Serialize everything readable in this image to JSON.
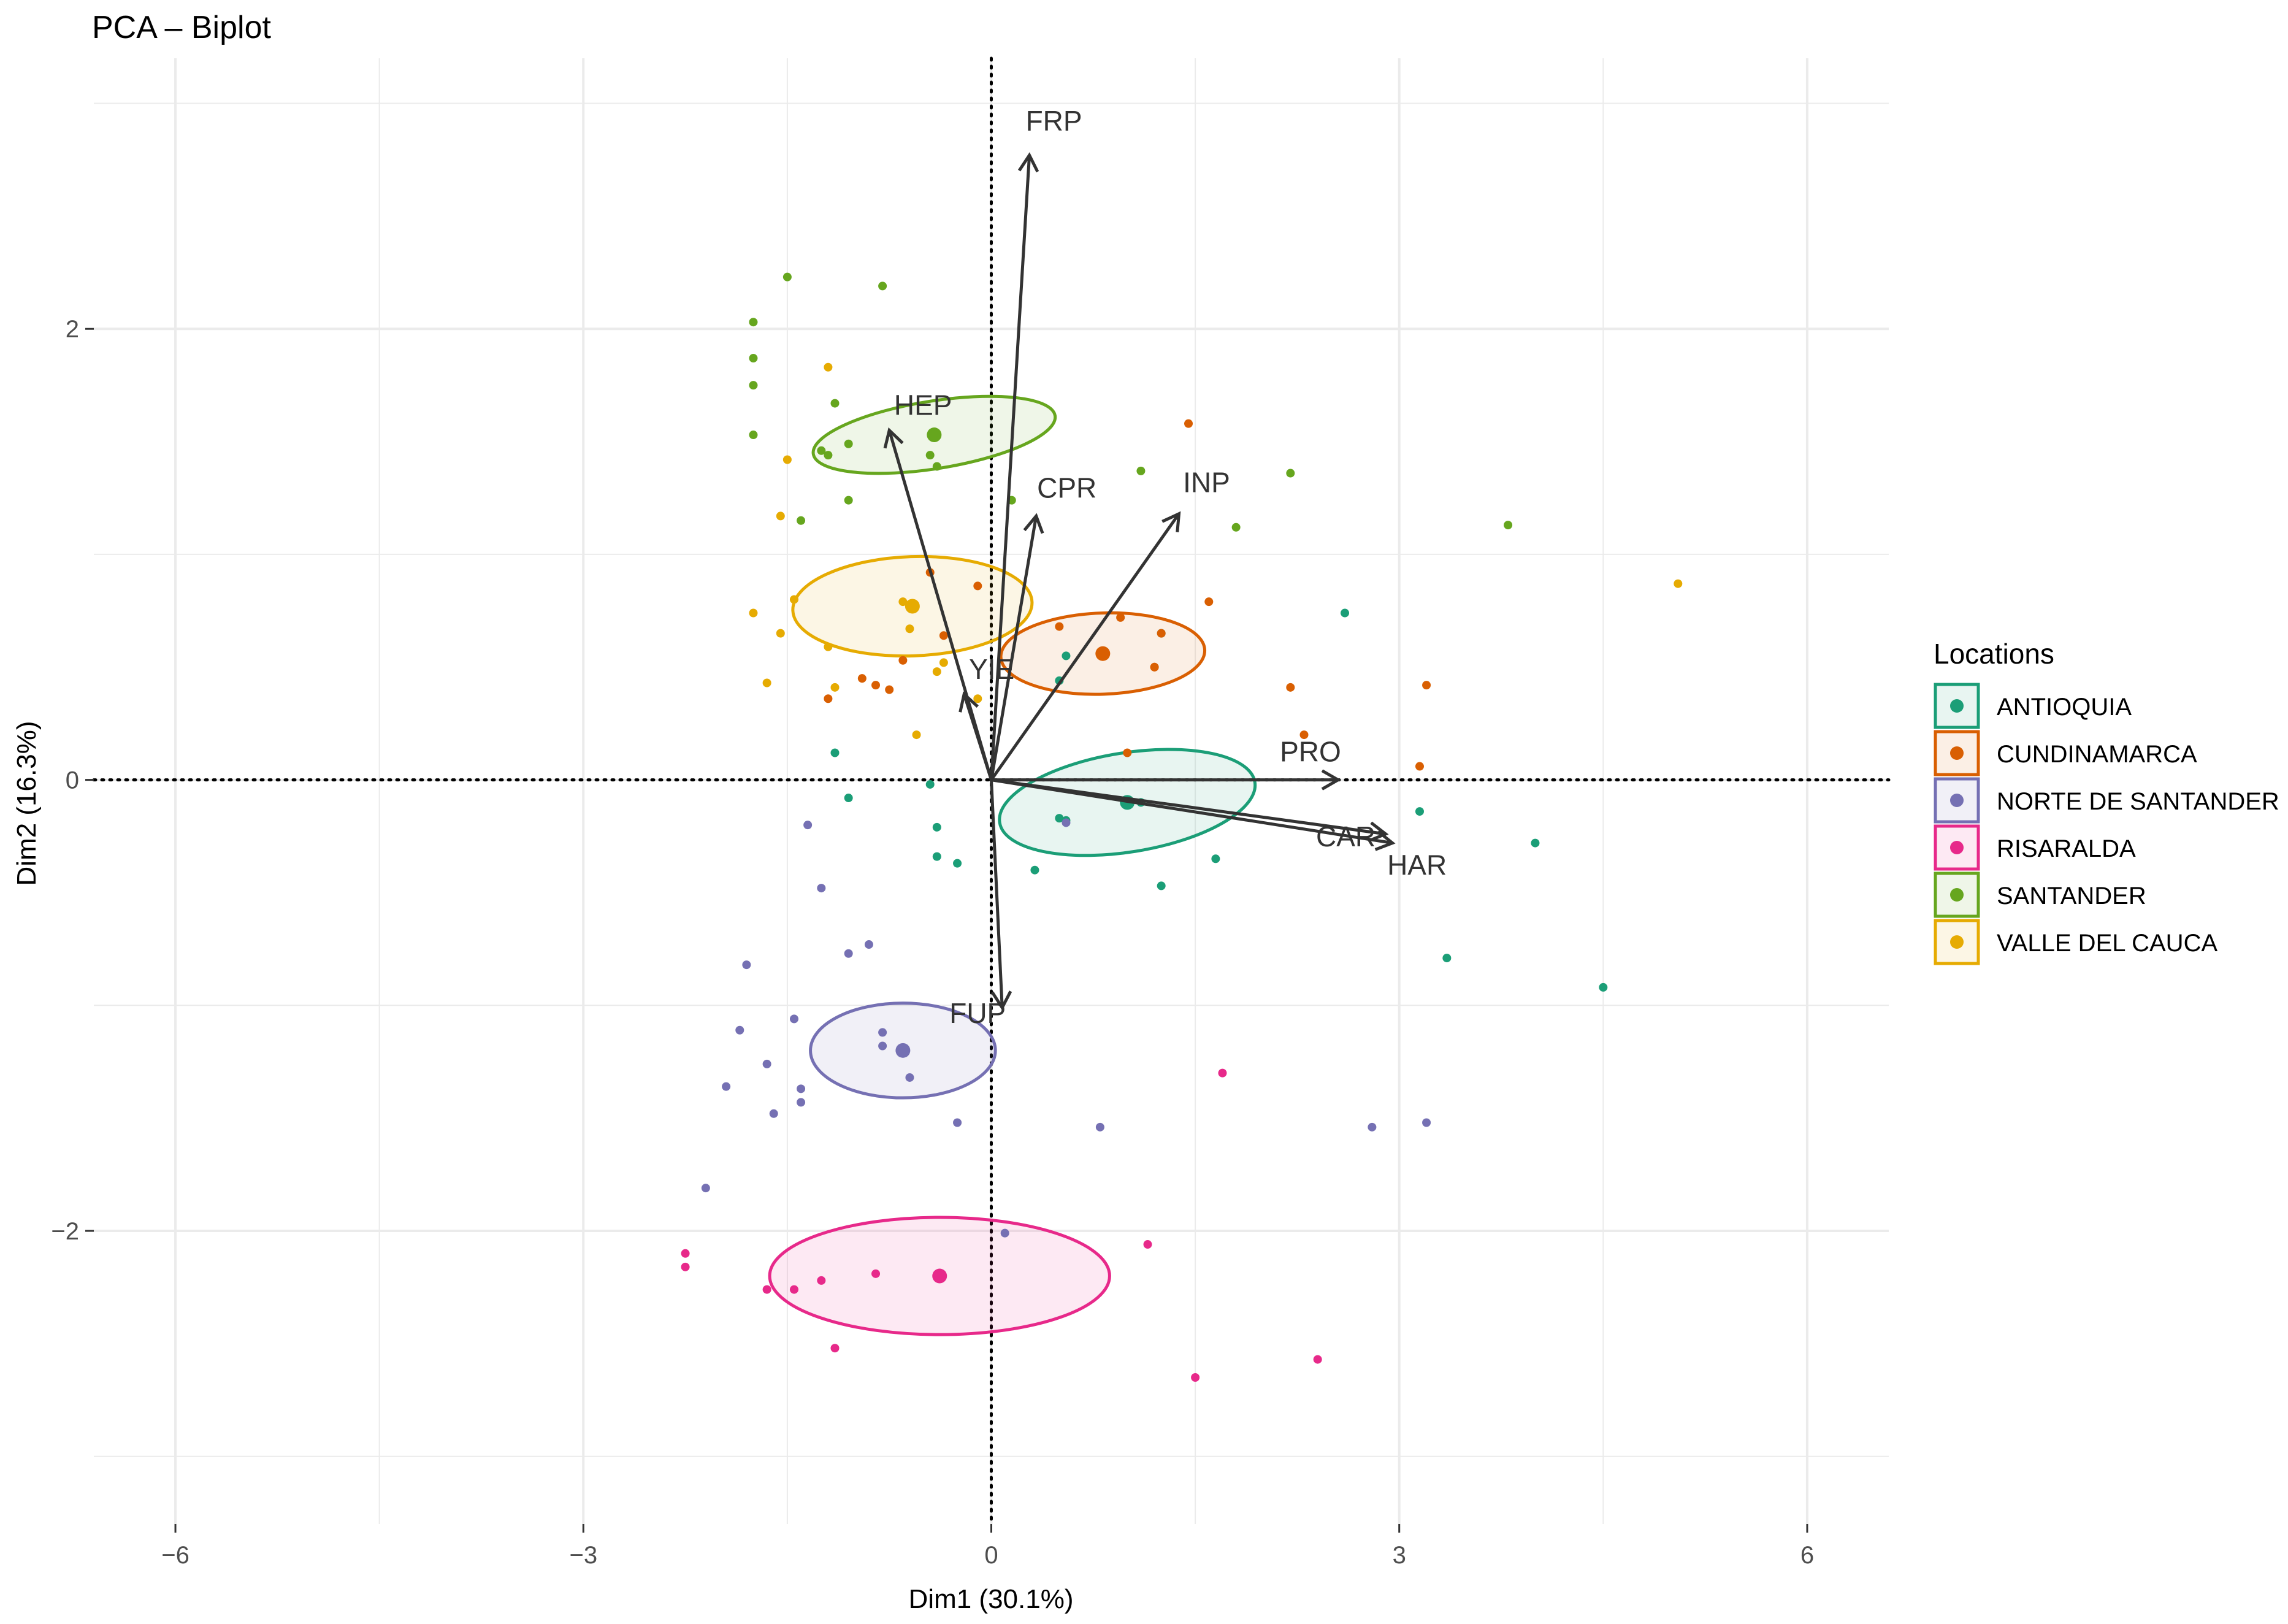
{
  "chart_data": {
    "type": "scatter",
    "title": "PCA – Biplot",
    "xlabel": "Dim1 (30.1%)",
    "ylabel": "Dim2 (16.3%)",
    "xlim": [
      -6.6,
      6.6
    ],
    "ylim": [
      -3.3,
      3.2
    ],
    "xticks": [
      -6,
      -3,
      0,
      3,
      6
    ],
    "xtick_labels": [
      "−6",
      "−3",
      "0",
      "3",
      "6"
    ],
    "yticks": [
      -2,
      0,
      2
    ],
    "ytick_labels": [
      "−2",
      "0",
      "2"
    ],
    "grid": true,
    "legend": {
      "title": "Locations",
      "position": "right"
    },
    "series": [
      {
        "name": "ANTIOQUIA",
        "color": "#1b9e77",
        "centroid": [
          1.0,
          -0.1
        ],
        "ellipse": {
          "rx": 0.95,
          "ry": 0.22,
          "angle": -9
        },
        "x": [
          2.6,
          1.25,
          0.5,
          0.55,
          0.5,
          -1.15,
          -1.05,
          -0.45,
          -0.4,
          -0.4,
          -0.25,
          0.32,
          0.55,
          1.1,
          1.65,
          1.25,
          3.15,
          4.0,
          3.35,
          4.5
        ],
        "y": [
          0.74,
          0.65,
          0.44,
          0.55,
          -0.17,
          0.12,
          -0.08,
          -0.02,
          -0.21,
          -0.34,
          -0.37,
          -0.4,
          -0.18,
          -0.1,
          -0.35,
          -0.47,
          -0.14,
          -0.28,
          -0.79,
          -0.92
        ]
      },
      {
        "name": "CUNDINAMARCA",
        "color": "#d95f02",
        "centroid": [
          0.82,
          0.56
        ],
        "ellipse": {
          "rx": 0.75,
          "ry": 0.18,
          "angle": -2
        },
        "x": [
          1.45,
          1.6,
          1.25,
          1.2,
          1.0,
          0.5,
          0.95,
          1.2,
          2.2,
          2.3,
          3.2,
          3.15,
          -0.45,
          -0.1,
          -0.35,
          -0.65,
          -0.95,
          -0.85,
          -0.75,
          -1.2
        ],
        "y": [
          1.58,
          0.79,
          0.65,
          0.5,
          0.12,
          0.68,
          0.72,
          0.5,
          0.41,
          0.2,
          0.42,
          0.06,
          0.92,
          0.86,
          0.64,
          0.53,
          0.45,
          0.42,
          0.4,
          0.36
        ]
      },
      {
        "name": "NORTE DE SANTANDER",
        "color": "#7570b3",
        "centroid": [
          -0.65,
          -1.2
        ],
        "ellipse": {
          "rx": 0.68,
          "ry": 0.21,
          "angle": 0
        },
        "x": [
          -1.25,
          -1.05,
          -0.9,
          -1.8,
          -1.45,
          -1.85,
          -1.65,
          -1.95,
          -1.4,
          -1.4,
          -1.6,
          -1.35,
          -0.8,
          -0.8,
          -0.6,
          -0.25,
          0.1,
          0.8,
          2.8,
          3.2,
          -2.1,
          0.55
        ],
        "y": [
          -0.48,
          -0.77,
          -0.73,
          -0.82,
          -1.06,
          -1.11,
          -1.26,
          -1.36,
          -1.37,
          -1.43,
          -1.48,
          -0.2,
          -1.12,
          -1.18,
          -1.32,
          -1.52,
          -2.01,
          -1.54,
          -1.54,
          -1.52,
          -1.81,
          -0.19
        ]
      },
      {
        "name": "RISARALDA",
        "color": "#e7298a",
        "centroid": [
          -0.38,
          -2.2
        ],
        "ellipse": {
          "rx": 1.25,
          "ry": 0.26,
          "angle": 0
        },
        "x": [
          -2.25,
          -2.25,
          -1.65,
          -1.45,
          -1.25,
          -0.85,
          -1.15,
          1.7,
          1.15,
          2.4,
          1.5
        ],
        "y": [
          -2.1,
          -2.16,
          -2.26,
          -2.26,
          -2.22,
          -2.19,
          -2.52,
          -1.3,
          -2.06,
          -2.57,
          -2.65
        ]
      },
      {
        "name": "SANTANDER",
        "color": "#66a61e",
        "centroid": [
          -0.42,
          1.53
        ],
        "ellipse": {
          "rx": 0.9,
          "ry": 0.15,
          "angle": -9
        },
        "x": [
          -1.5,
          -0.8,
          -1.75,
          -1.75,
          -1.75,
          -1.75,
          -1.15,
          -1.25,
          -1.2,
          -1.05,
          -1.05,
          -1.4,
          -0.45,
          -0.4,
          0.15,
          1.1,
          2.2,
          1.8,
          3.8
        ],
        "y": [
          2.23,
          2.19,
          2.03,
          1.87,
          1.75,
          1.53,
          1.67,
          1.46,
          1.44,
          1.49,
          1.24,
          1.15,
          1.44,
          1.39,
          1.24,
          1.37,
          1.36,
          1.12,
          1.13
        ]
      },
      {
        "name": "VALLE DEL CAUCA",
        "color": "#e6ab02",
        "centroid": [
          -0.58,
          0.77
        ],
        "ellipse": {
          "rx": 0.88,
          "ry": 0.22,
          "angle": -2
        },
        "x": [
          -1.2,
          -1.5,
          -1.55,
          -1.75,
          -1.45,
          -1.55,
          -1.2,
          -1.65,
          -1.15,
          -0.65,
          -0.35,
          -0.55,
          -0.4,
          -0.1,
          -0.6,
          5.05
        ],
        "y": [
          1.83,
          1.42,
          1.17,
          0.74,
          0.8,
          0.65,
          0.59,
          0.43,
          0.41,
          0.79,
          0.52,
          0.2,
          0.48,
          0.36,
          0.67,
          0.87
        ]
      }
    ],
    "variables": [
      {
        "name": "FRP",
        "x": 0.28,
        "y": 2.77
      },
      {
        "name": "HEP",
        "x": -0.75,
        "y": 1.55
      },
      {
        "name": "CPR",
        "x": 0.33,
        "y": 1.17
      },
      {
        "name": "INP",
        "x": 1.38,
        "y": 1.18
      },
      {
        "name": "YIE",
        "x": -0.2,
        "y": 0.38
      },
      {
        "name": "PRO",
        "x": 2.55,
        "y": 0.0
      },
      {
        "name": "CAR",
        "x": 2.9,
        "y": -0.24
      },
      {
        "name": "HAR",
        "x": 2.95,
        "y": -0.28
      },
      {
        "name": "FUP",
        "x": 0.08,
        "y": -1.01
      }
    ]
  }
}
